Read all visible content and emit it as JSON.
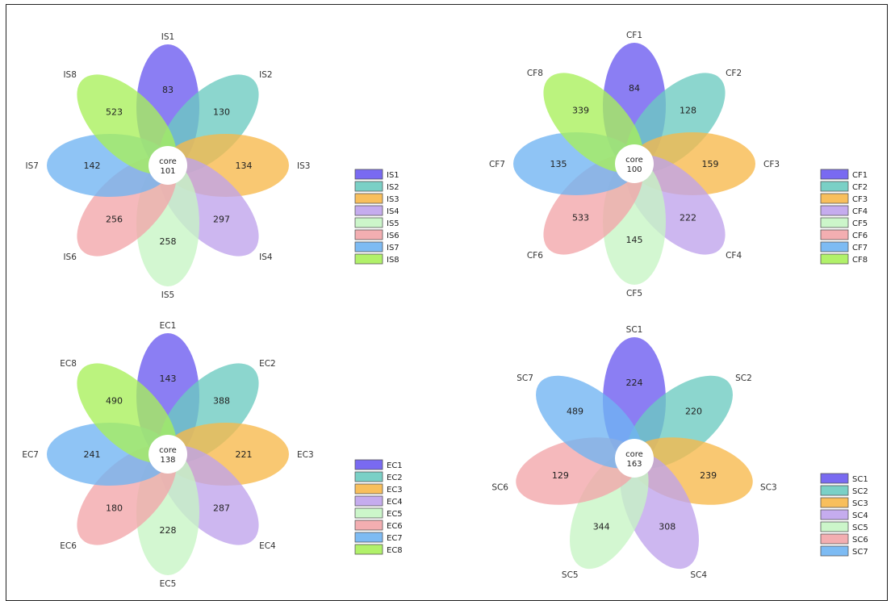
{
  "colors": [
    "#6a5af0",
    "#6bcbc0",
    "#f7b84a",
    "#bfa3ec",
    "#c6f5c4",
    "#f2a5a9",
    "#6fb4f2",
    "#a8ef5a"
  ],
  "flowers": [
    {
      "id": "IS",
      "core_label": "core",
      "core_value": "101",
      "petals": [
        {
          "name": "IS1",
          "value": "83"
        },
        {
          "name": "IS2",
          "value": "130"
        },
        {
          "name": "IS3",
          "value": "134"
        },
        {
          "name": "IS4",
          "value": "297"
        },
        {
          "name": "IS5",
          "value": "258"
        },
        {
          "name": "IS6",
          "value": "256"
        },
        {
          "name": "IS7",
          "value": "142"
        },
        {
          "name": "IS8",
          "value": "523"
        }
      ],
      "legend": [
        "IS1",
        "IS2",
        "IS3",
        "IS4",
        "IS5",
        "IS6",
        "IS7",
        "IS8"
      ]
    },
    {
      "id": "CF",
      "core_label": "core",
      "core_value": "100",
      "petals": [
        {
          "name": "CF1",
          "value": "84"
        },
        {
          "name": "CF2",
          "value": "128"
        },
        {
          "name": "CF3",
          "value": "159"
        },
        {
          "name": "CF4",
          "value": "222"
        },
        {
          "name": "CF5",
          "value": "145"
        },
        {
          "name": "CF6",
          "value": "533"
        },
        {
          "name": "CF7",
          "value": "135"
        },
        {
          "name": "CF8",
          "value": "339"
        }
      ],
      "legend": [
        "CF1",
        "CF2",
        "CF3",
        "CF4",
        "CF5",
        "CF6",
        "CF7",
        "CF8"
      ]
    },
    {
      "id": "EC",
      "core_label": "core",
      "core_value": "138",
      "petals": [
        {
          "name": "EC1",
          "value": "143"
        },
        {
          "name": "EC2",
          "value": "388"
        },
        {
          "name": "EC3",
          "value": "221"
        },
        {
          "name": "EC4",
          "value": "287"
        },
        {
          "name": "EC5",
          "value": "228"
        },
        {
          "name": "EC6",
          "value": "180"
        },
        {
          "name": "EC7",
          "value": "241"
        },
        {
          "name": "EC8",
          "value": "490"
        }
      ],
      "legend": [
        "EC1",
        "EC2",
        "EC3",
        "EC4",
        "EC5",
        "EC6",
        "EC7",
        "EC8"
      ]
    },
    {
      "id": "SC",
      "core_label": "core",
      "core_value": "163",
      "petals": [
        {
          "name": "SC1",
          "value": "224"
        },
        {
          "name": "SC2",
          "value": "220"
        },
        {
          "name": "SC3",
          "value": "239"
        },
        {
          "name": "SC4",
          "value": "308"
        },
        {
          "name": "SC5",
          "value": "344"
        },
        {
          "name": "SC6",
          "value": "129"
        },
        {
          "name": "SC7",
          "value": "489"
        }
      ],
      "legend": [
        "SC1",
        "SC2",
        "SC3",
        "SC4",
        "SC5",
        "SC6",
        "SC7"
      ]
    }
  ]
}
